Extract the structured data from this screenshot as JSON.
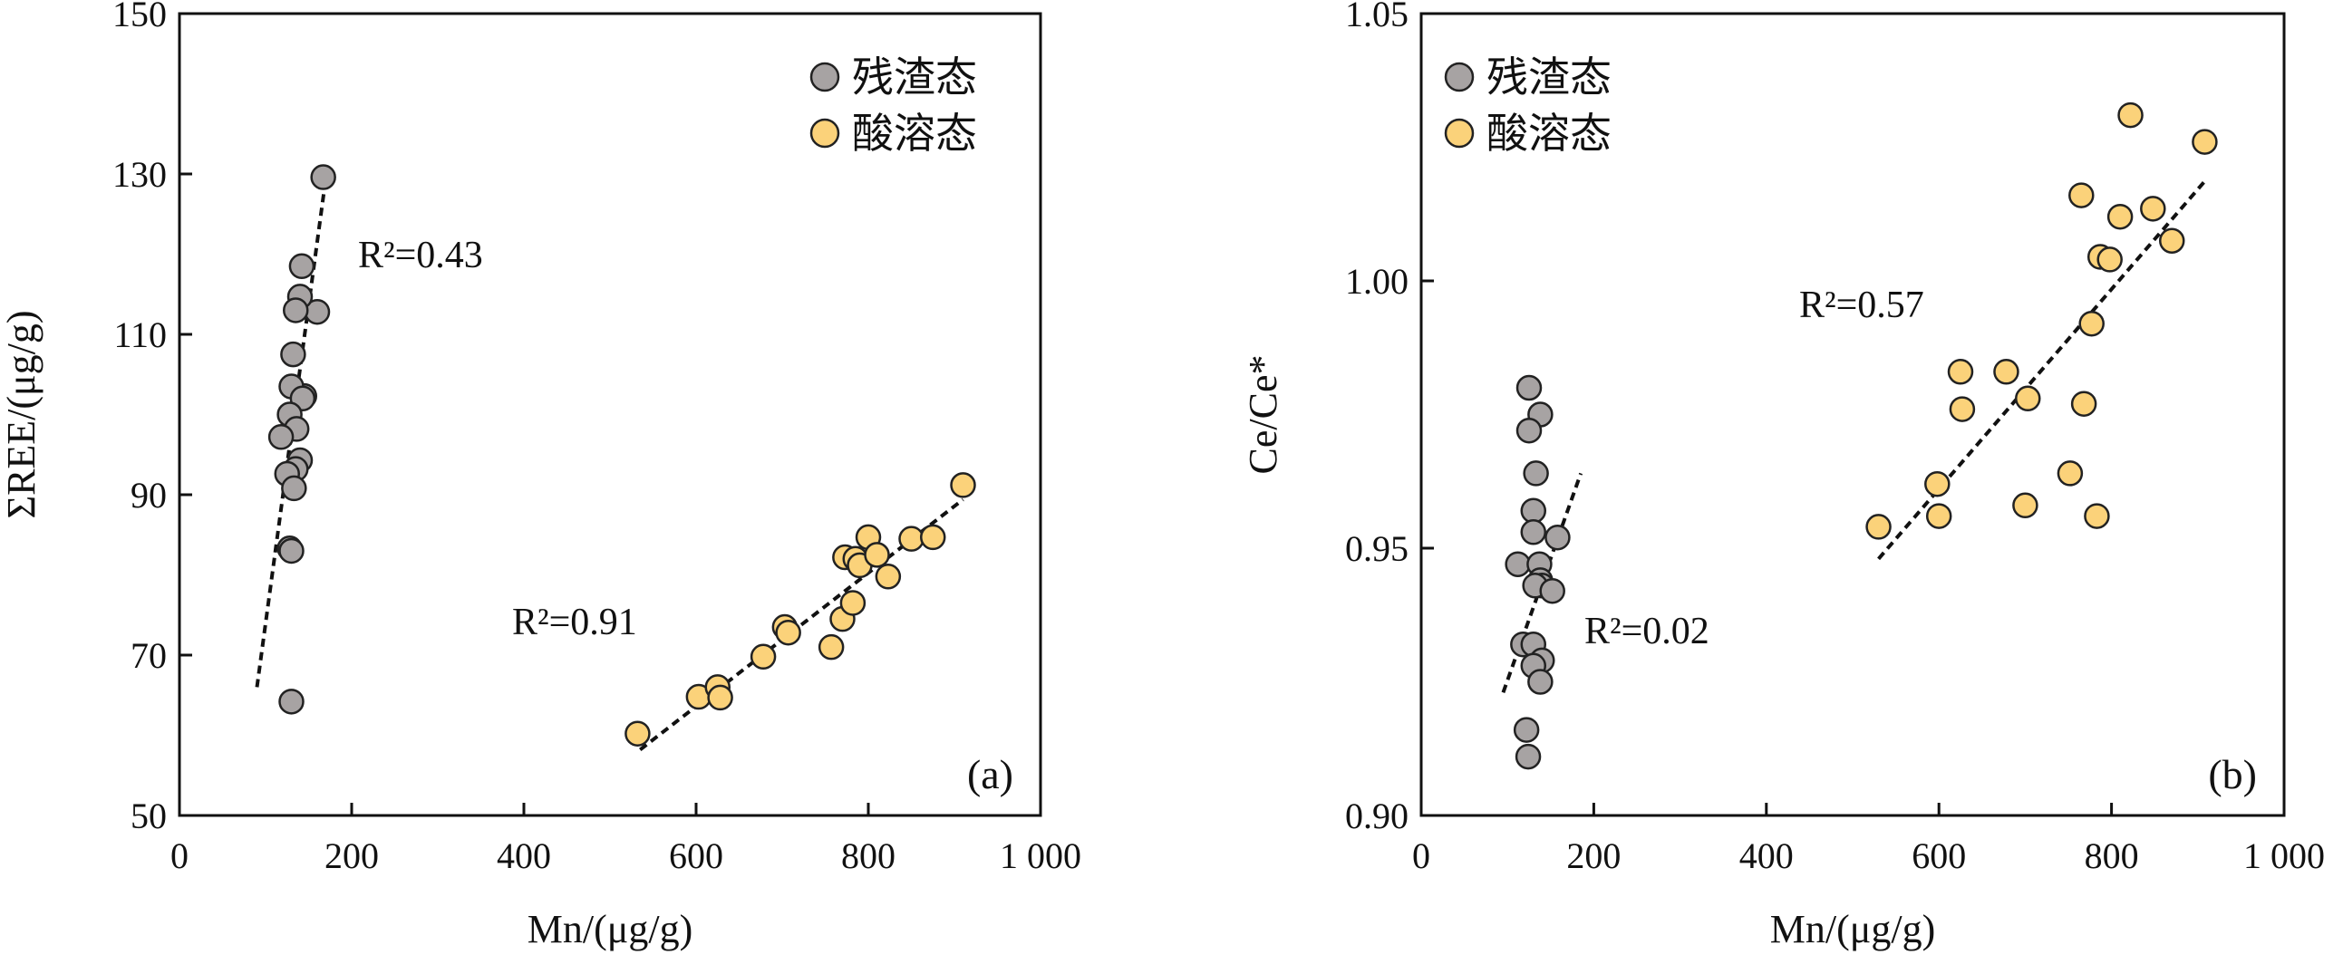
{
  "colors": {
    "residual": "#a7a3a3",
    "acid_soluble": "#fbd27a",
    "marker_stroke": "#222222",
    "trend_line": "#111111"
  },
  "chart_data": [
    {
      "type": "scatter",
      "panel_tag": "(a)",
      "xlabel": "Mn/(μg/g)",
      "ylabel": "ΣREE/(μg/g)",
      "xlim": [
        0,
        1000
      ],
      "ylim": [
        50,
        150
      ],
      "xticks": [
        0,
        200,
        400,
        600,
        800,
        1000
      ],
      "xtick_labels": [
        "0",
        "200",
        "400",
        "600",
        "800",
        "1 000"
      ],
      "yticks": [
        50,
        70,
        90,
        110,
        130,
        150
      ],
      "ytick_labels": [
        "50",
        "70",
        "90",
        "110",
        "130",
        "150"
      ],
      "legend_position": "top-right",
      "series": [
        {
          "name": "残渣态",
          "color_key": "residual",
          "x": [
            167,
            142,
            160,
            140,
            135,
            145,
            132,
            130,
            143,
            128,
            136,
            118,
            140,
            135,
            125,
            133,
            128,
            130,
            130
          ],
          "y": [
            129.6,
            118.5,
            112.8,
            114.7,
            113.0,
            102.3,
            107.5,
            103.5,
            102.0,
            100.0,
            98.2,
            97.2,
            94.3,
            93.2,
            92.6,
            90.8,
            83.3,
            83.0,
            64.2
          ],
          "trend": {
            "x": [
              90,
              170
            ],
            "y": [
              66,
              129.5
            ],
            "r2_label": "R²=0.43"
          }
        },
        {
          "name": "酸溶态",
          "color_key": "acid_soluble",
          "x": [
            532,
            603,
            625,
            628,
            678,
            703,
            707,
            757,
            770,
            773,
            782,
            785,
            790,
            800,
            810,
            823,
            850,
            875,
            910
          ],
          "y": [
            60.2,
            64.8,
            66.0,
            64.7,
            69.8,
            73.5,
            72.8,
            71.0,
            74.5,
            82.2,
            76.5,
            82.0,
            81.2,
            84.7,
            82.5,
            79.8,
            84.5,
            84.7,
            91.2
          ],
          "trend": {
            "x": [
              535,
              910
            ],
            "y": [
              58.2,
              89.4
            ],
            "r2_label": "R²=0.91"
          }
        }
      ]
    },
    {
      "type": "scatter",
      "panel_tag": "(b)",
      "xlabel": "Mn/(μg/g)",
      "ylabel": "Ce/Ce*",
      "xlim": [
        0,
        1000
      ],
      "ylim": [
        0.9,
        1.05
      ],
      "xticks": [
        0,
        200,
        400,
        600,
        800,
        1000
      ],
      "xtick_labels": [
        "0",
        "200",
        "400",
        "600",
        "800",
        "1 000"
      ],
      "yticks": [
        0.9,
        0.95,
        1.0,
        1.05
      ],
      "ytick_labels": [
        "0.90",
        "0.95",
        "1.00",
        "1.05"
      ],
      "legend_position": "top-right",
      "series": [
        {
          "name": "残渣态",
          "color_key": "residual",
          "x": [
            125,
            138,
            125,
            133,
            130,
            130,
            158,
            112,
            137,
            138,
            140,
            132,
            152,
            118,
            130,
            140,
            130,
            138,
            122,
            124
          ],
          "y": [
            0.98,
            0.975,
            0.972,
            0.964,
            0.957,
            0.953,
            0.952,
            0.947,
            0.947,
            0.944,
            0.943,
            0.943,
            0.942,
            0.932,
            0.932,
            0.929,
            0.928,
            0.925,
            0.916,
            0.911
          ],
          "trend": {
            "x": [
              95,
              185
            ],
            "y": [
              0.923,
              0.964
            ],
            "r2_label": "R²=0.02"
          }
        },
        {
          "name": "酸溶态",
          "color_key": "acid_soluble",
          "x": [
            822,
            908,
            765,
            848,
            810,
            870,
            787,
            798,
            777,
            625,
            678,
            627,
            703,
            768,
            598,
            600,
            700,
            752,
            783,
            530
          ],
          "y": [
            1.031,
            1.026,
            1.016,
            1.0135,
            1.012,
            1.0075,
            1.0045,
            1.004,
            0.992,
            0.983,
            0.983,
            0.976,
            0.978,
            0.977,
            0.962,
            0.956,
            0.958,
            0.964,
            0.956,
            0.954
          ],
          "trend": {
            "x": [
              530,
              910
            ],
            "y": [
              0.948,
              1.019
            ],
            "r2_label": "R²=0.57"
          }
        }
      ]
    }
  ]
}
